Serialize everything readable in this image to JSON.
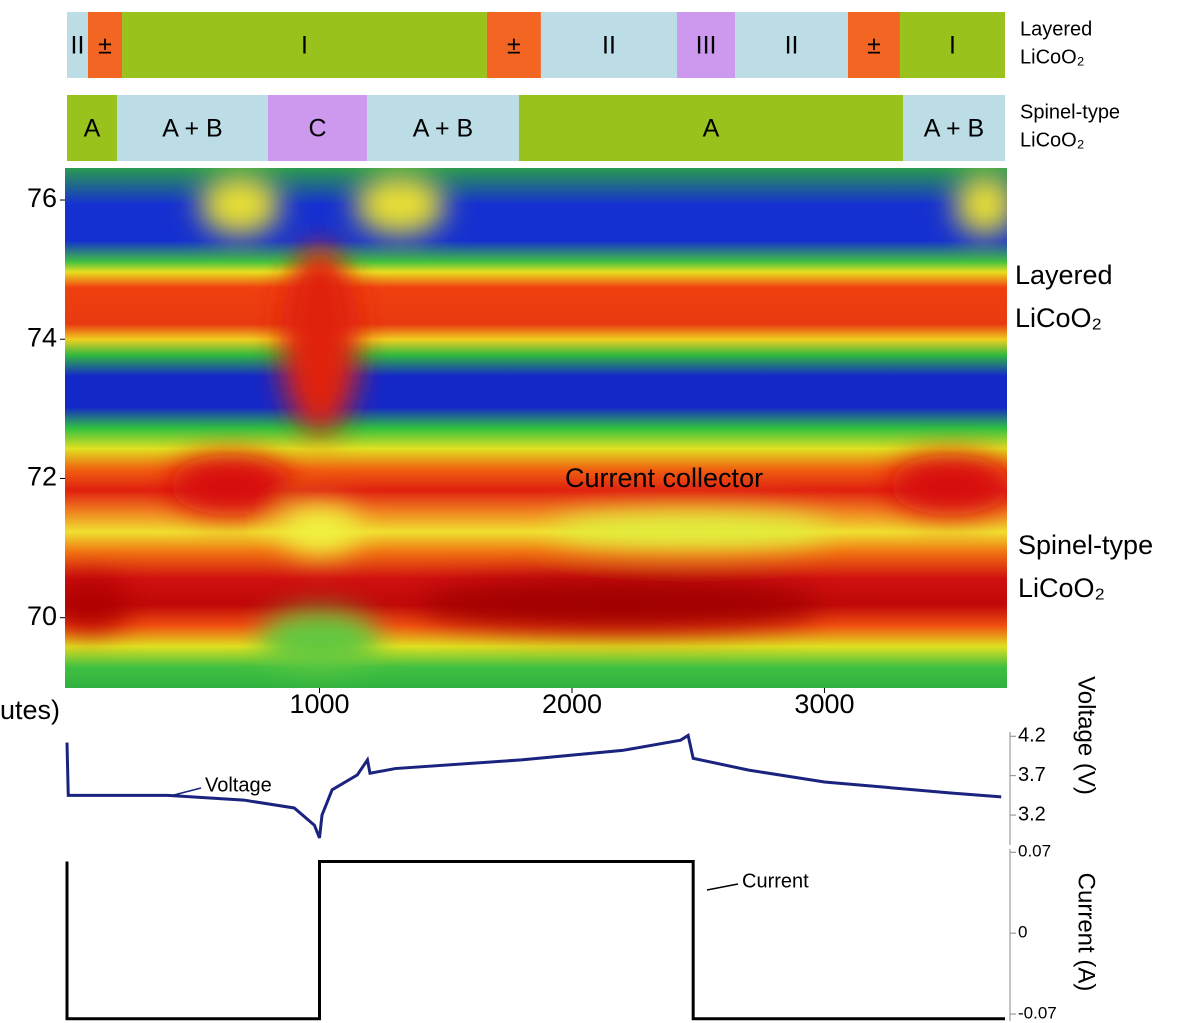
{
  "chart_data": [
    {
      "type": "segments",
      "xlim": [
        0,
        3715
      ],
      "edges": [
        0,
        83,
        218,
        1663,
        1877,
        2416,
        2646,
        3093,
        3299,
        3715
      ],
      "labels": [
        "II",
        "±",
        "I",
        "±",
        "II",
        "III",
        "II",
        "±",
        "I"
      ],
      "colors": [
        "#bcdde6",
        "#f26522",
        "#99c21c",
        "#f26522",
        "#bcdde6",
        "#cc99ee",
        "#bcdde6",
        "#f26522",
        "#99c21c"
      ],
      "title": [
        "Layered",
        "LiCoO₂"
      ]
    },
    {
      "type": "segments",
      "xlim": [
        0,
        3715
      ],
      "edges": [
        0,
        198,
        796,
        1188,
        1790,
        3311,
        3715
      ],
      "labels": [
        "A",
        "A + B",
        "C",
        "A + B",
        "A",
        "A + B"
      ],
      "colors": [
        "#99c21c",
        "#bcdde6",
        "#cc99ee",
        "#bcdde6",
        "#99c21c",
        "#bcdde6"
      ],
      "title": [
        "Spinel-type",
        "LiCoO₂"
      ]
    },
    {
      "type": "heatmap",
      "xlim": [
        0,
        3715
      ],
      "xticks": [
        1000,
        2000,
        3000
      ],
      "x_label": "utes)",
      "ylim": [
        68.99,
        76.46
      ],
      "yticks": [
        70,
        72,
        74,
        76
      ],
      "annotations": [
        "Current collector",
        "Layered",
        "LiCoO₂",
        "Spinel-type",
        "LiCoO₂"
      ]
    },
    {
      "type": "line",
      "xlim": [
        0,
        3715
      ],
      "ylim": [
        2.82,
        4.33
      ],
      "yticks": [
        4.2,
        3.7,
        3.2
      ],
      "y_label": "Voltage (V)",
      "x": [
        0,
        5,
        400,
        700,
        900,
        980,
        1000,
        1010,
        1050,
        1150,
        1190,
        1200,
        1300,
        1800,
        2200,
        2430,
        2460,
        2480,
        2700,
        3000,
        3500,
        3700
      ],
      "series": [
        {
          "name": "Voltage",
          "color": "#1a237e",
          "values": [
            4.12,
            3.45,
            3.45,
            3.39,
            3.29,
            3.07,
            2.91,
            3.2,
            3.52,
            3.71,
            3.9,
            3.73,
            3.79,
            3.9,
            4.02,
            4.15,
            4.21,
            3.92,
            3.77,
            3.62,
            3.48,
            3.43
          ]
        }
      ]
    },
    {
      "type": "line",
      "xlim": [
        0,
        3715
      ],
      "ylim": [
        -0.076,
        0.078
      ],
      "yticks": [
        0.07,
        0,
        -0.07
      ],
      "y_label": "Current (A)",
      "x": [
        0,
        0,
        1000,
        1000,
        2480,
        2480,
        3715
      ],
      "series": [
        {
          "name": "Current",
          "color": "#000000",
          "values": [
            0.062,
            -0.074,
            -0.074,
            0.062,
            0.062,
            -0.074,
            -0.074
          ]
        }
      ]
    }
  ]
}
